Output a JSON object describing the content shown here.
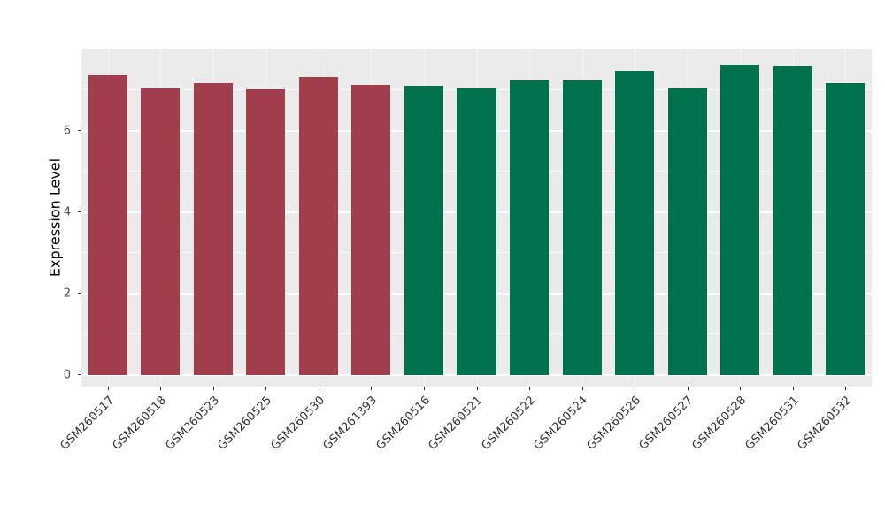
{
  "figure": {
    "background": "#FFFFFF",
    "panel_background": "#EBEBEB",
    "grid_major_color": "#FFFFFF",
    "tick_text_color": "#4D4D4D",
    "axis_title_color": "#000000"
  },
  "chart_data": {
    "type": "bar",
    "title": "",
    "xlabel": "",
    "ylabel": "Expression Level",
    "ylim": [
      0,
      8
    ],
    "yticks": [
      0,
      2,
      4,
      6
    ],
    "ytick_labels": [
      "0",
      "2",
      "4",
      "6"
    ],
    "yticks_minor": [
      1,
      3,
      5,
      7
    ],
    "grid": true,
    "legend_position": "none",
    "categories": [
      "GSM260517",
      "GSM260518",
      "GSM260523",
      "GSM260525",
      "GSM260530",
      "GSM261393",
      "GSM260516",
      "GSM260521",
      "GSM260522",
      "GSM260524",
      "GSM260526",
      "GSM260527",
      "GSM260528",
      "GSM260531",
      "GSM260532"
    ],
    "values": [
      7.37,
      7.05,
      7.17,
      7.03,
      7.32,
      7.12,
      7.1,
      7.05,
      7.23,
      7.25,
      7.47,
      7.04,
      7.63,
      7.58,
      7.17
    ],
    "bar_colors": [
      "#A03E4C",
      "#A03E4C",
      "#A03E4C",
      "#A03E4C",
      "#A03E4C",
      "#A03E4C",
      "#00714D",
      "#00714D",
      "#00714D",
      "#00714D",
      "#00714D",
      "#00714D",
      "#00714D",
      "#00714D",
      "#00714D"
    ],
    "palette": {
      "group1_color": "#A03E4C",
      "group2_color": "#00714D"
    },
    "groups": [
      {
        "color": "#A03E4C",
        "categories": [
          "GSM260517",
          "GSM260518",
          "GSM260523",
          "GSM260525",
          "GSM260530",
          "GSM261393"
        ]
      },
      {
        "color": "#00714D",
        "categories": [
          "GSM260516",
          "GSM260521",
          "GSM260522",
          "GSM260524",
          "GSM260526",
          "GSM260527",
          "GSM260528",
          "GSM260531",
          "GSM260532"
        ]
      }
    ]
  }
}
